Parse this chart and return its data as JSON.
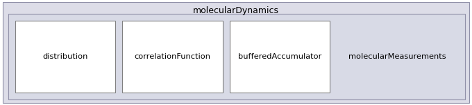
{
  "outer_box_label": "molecularDynamics",
  "outer_box_bg": "#dddde8",
  "outer_box_border": "#9090a8",
  "inner_box_bg": "#d8dae6",
  "inner_box_border": "#9090a8",
  "sub_boxes": [
    {
      "label": "distribution"
    },
    {
      "label": "correlationFunction"
    },
    {
      "label": "bufferedAccumulator"
    }
  ],
  "sub_box_bg": "#ffffff",
  "sub_box_border": "#808080",
  "highlighted_label": "molecularMeasurements",
  "fig_width": 6.8,
  "fig_height": 1.52,
  "dpi": 100
}
